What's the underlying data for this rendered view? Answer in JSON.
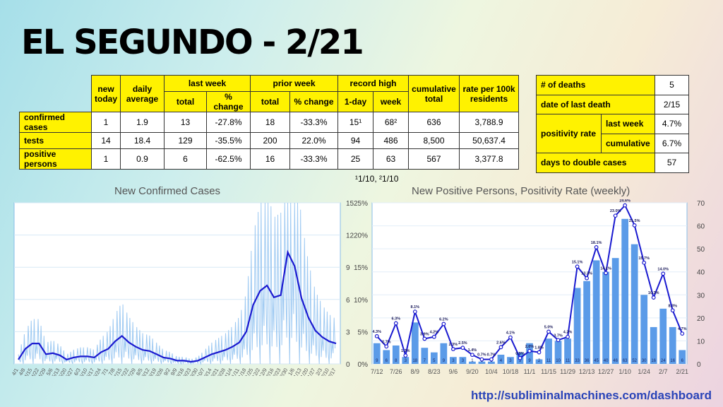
{
  "title": "EL SEGUNDO - 2/21",
  "main_table": {
    "headers": {
      "new_today": "new today",
      "daily_average": "daily average",
      "last_week": "last week",
      "prior_week": "prior week",
      "record_high": "record high",
      "cumulative_total": "cumulative total",
      "rate": "rate per 100k residents",
      "total": "total",
      "pct_change": "% change",
      "one_day": "1-day",
      "week": "week"
    },
    "rows": [
      {
        "label": "confirmed cases",
        "new_today": "1",
        "daily_average": "1.9",
        "lw_total": "13",
        "lw_change": "-27.8%",
        "pw_total": "18",
        "pw_change": "-33.3%",
        "rec_day": "15¹",
        "rec_week": "68²",
        "cumulative": "636",
        "rate": "3,788.9"
      },
      {
        "label": "tests",
        "new_today": "14",
        "daily_average": "18.4",
        "lw_total": "129",
        "lw_change": "-35.5%",
        "pw_total": "200",
        "pw_change": "22.0%",
        "rec_day": "94",
        "rec_week": "486",
        "cumulative": "8,500",
        "rate": "50,637.4"
      },
      {
        "label": "positive persons",
        "new_today": "1",
        "daily_average": "0.9",
        "lw_total": "6",
        "lw_change": "-62.5%",
        "pw_total": "16",
        "pw_change": "-33.3%",
        "rec_day": "25",
        "rec_week": "63",
        "cumulative": "567",
        "rate": "3,377.8"
      }
    ],
    "footnote": "¹1/10, ²1/10"
  },
  "side_table": {
    "deaths_label": "# of deaths",
    "deaths_value": "5",
    "last_death_label": "date of last death",
    "last_death_value": "2/15",
    "positivity_label": "positivity rate",
    "pos_last_week_label": "last week",
    "pos_last_week_value": "4.7%",
    "pos_cumulative_label": "cumulative",
    "pos_cumulative_value": "6.7%",
    "double_label": "days to double cases",
    "double_value": "57"
  },
  "chart_data": [
    {
      "type": "line",
      "title": "New Confirmed Cases",
      "x_ticks": [
        "4/1",
        "4/8",
        "4/15",
        "4/22",
        "4/29",
        "5/6",
        "5/13",
        "5/20",
        "5/27",
        "6/3",
        "6/10",
        "6/17",
        "6/24",
        "7/1",
        "7/8",
        "7/15",
        "7/22",
        "7/29",
        "8/5",
        "8/12",
        "8/19",
        "8/26",
        "9/2",
        "9/9",
        "9/16",
        "9/23",
        "9/30",
        "10/7",
        "10/14",
        "10/21",
        "10/28",
        "11/4",
        "11/11",
        "11/18",
        "11/25",
        "12/2",
        "12/9",
        "12/16",
        "12/23",
        "12/30",
        "1/6",
        "1/13",
        "1/20",
        "1/27",
        "2/3",
        "2/10",
        "2/17"
      ],
      "ylim": [
        0,
        15
      ],
      "y_ticks": [
        0,
        3,
        6,
        9,
        12,
        15
      ],
      "series": [
        {
          "name": "",
          "color": "#1a1ad0",
          "values": [
            0.4,
            1.4,
            1.9,
            1.9,
            0.9,
            1.0,
            0.8,
            0.4,
            0.6,
            0.7,
            0.7,
            0.6,
            1.1,
            1.4,
            2.1,
            2.6,
            2.0,
            1.6,
            1.3,
            1.2,
            0.9,
            0.6,
            0.5,
            0.3,
            0.3,
            0.2,
            0.3,
            0.6,
            0.9,
            1.1,
            1.3,
            1.6,
            2.0,
            3.0,
            5.5,
            6.8,
            7.3,
            6.2,
            6.4,
            10.4,
            9.1,
            6.1,
            4.3,
            3.1,
            2.5,
            2.1,
            1.9
          ]
        }
      ]
    },
    {
      "type": "bar",
      "title": "New Positive Persons, Positivity Rate (weekly)",
      "categories": [
        "7/12",
        "7/19",
        "7/26",
        "8/2",
        "8/9",
        "8/16",
        "8/23",
        "8/30",
        "9/6",
        "9/13",
        "9/20",
        "9/27",
        "10/4",
        "10/11",
        "10/18",
        "10/25",
        "11/1",
        "11/8",
        "11/15",
        "11/22",
        "11/29",
        "12/6",
        "12/13",
        "12/20",
        "12/27",
        "1/3",
        "1/10",
        "1/17",
        "1/24",
        "1/31",
        "2/7",
        "2/14",
        "2/21"
      ],
      "x_ticks": [
        "7/12",
        "7/26",
        "8/9",
        "8/23",
        "9/6",
        "9/20",
        "10/4",
        "10/18",
        "11/1",
        "11/15",
        "11/29",
        "12/13",
        "12/27",
        "1/10",
        "1/24",
        "2/7",
        "2/21"
      ],
      "series": [
        {
          "name": "",
          "color": "#5b9be8",
          "axis": "right",
          "values": [
            9,
            6,
            8,
            3,
            18,
            7,
            5,
            9,
            3,
            3,
            1,
            1,
            1,
            4,
            3,
            5,
            9,
            2,
            11,
            10,
            11,
            33,
            36,
            45,
            40,
            46,
            63,
            52,
            30,
            16,
            24,
            16,
            6
          ],
          "ylim": [
            0,
            70
          ],
          "y_ticks": [
            0,
            10,
            20,
            30,
            40,
            50,
            60,
            70
          ]
        },
        {
          "name": "",
          "color": "#1a1ad0",
          "axis": "left",
          "values": [
            4.3,
            2.7,
            6.3,
            1.3,
            8.1,
            3.9,
            4.2,
            6.2,
            2.3,
            2.5,
            1.4,
            0.7,
            0.7,
            2.6,
            4.1,
            0.9,
            2.0,
            1.8,
            5.0,
            3.7,
            4.2,
            15.1,
            13.3,
            18.1,
            14.1,
            23.0,
            24.6,
            21.5,
            15.7,
            10.3,
            14.0,
            8.3,
            4.7
          ],
          "labels": [
            "4.3%",
            "2.7%",
            "6.3%",
            "1.3%",
            "8.1%",
            "3.9%",
            "4.2%",
            "6.2%",
            "2.3%",
            "2.5%",
            "1.4%",
            "0.7%",
            "0.7%",
            "2.6%",
            "4.1%",
            "0.9%",
            "2.0%",
            "1.8%",
            "5.0%",
            "3.7%",
            "4.2%",
            "15.1%",
            "13.3%",
            "18.1%",
            "14.1%",
            "23.0%",
            "24.6%",
            "21.5%",
            "15.7%",
            "10.3%",
            "14.0%",
            "8.3%",
            "4.7%"
          ],
          "ylim": [
            0,
            25
          ],
          "y_ticks": [
            "0%",
            "5%",
            "10%",
            "15%",
            "20%",
            "25%"
          ]
        }
      ]
    }
  ],
  "url": "http://subliminalmachines.com/dashboard"
}
